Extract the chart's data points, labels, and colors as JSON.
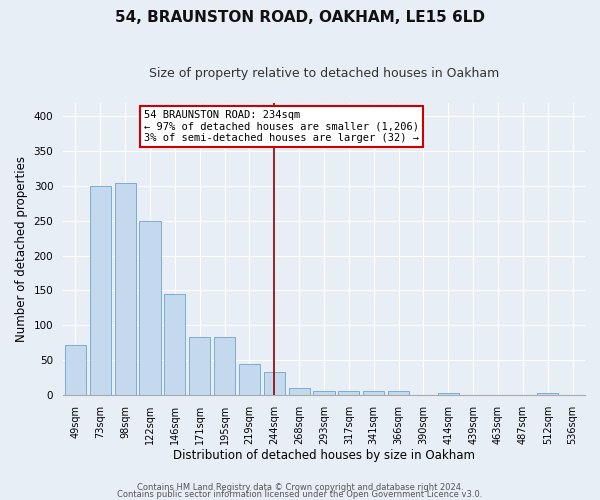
{
  "title": "54, BRAUNSTON ROAD, OAKHAM, LE15 6LD",
  "subtitle": "Size of property relative to detached houses in Oakham",
  "xlabel": "Distribution of detached houses by size in Oakham",
  "ylabel": "Number of detached properties",
  "bar_color": "#c5d9ee",
  "bar_edge_color": "#7aadd4",
  "background_color": "#e8eef5",
  "grid_color": "#ffffff",
  "tick_labels": [
    "49sqm",
    "73sqm",
    "98sqm",
    "122sqm",
    "146sqm",
    "171sqm",
    "195sqm",
    "219sqm",
    "244sqm",
    "268sqm",
    "293sqm",
    "317sqm",
    "341sqm",
    "366sqm",
    "390sqm",
    "414sqm",
    "439sqm",
    "463sqm",
    "487sqm",
    "512sqm",
    "536sqm"
  ],
  "bar_values": [
    72,
    300,
    305,
    250,
    145,
    83,
    83,
    45,
    33,
    10,
    6,
    6,
    6,
    6,
    0,
    3,
    0,
    0,
    0,
    3,
    0
  ],
  "ylim": [
    0,
    420
  ],
  "yticks": [
    0,
    50,
    100,
    150,
    200,
    250,
    300,
    350,
    400
  ],
  "property_line_index": 8,
  "property_line_color": "#8b0000",
  "annotation_title": "54 BRAUNSTON ROAD: 234sqm",
  "annotation_line1": "← 97% of detached houses are smaller (1,206)",
  "annotation_line2": "3% of semi-detached houses are larger (32) →",
  "annotation_box_color": "#cc0000",
  "footer_line1": "Contains HM Land Registry data © Crown copyright and database right 2024.",
  "footer_line2": "Contains public sector information licensed under the Open Government Licence v3.0.",
  "title_fontsize": 11,
  "subtitle_fontsize": 9,
  "label_fontsize": 8.5,
  "tick_fontsize": 7,
  "annotation_fontsize": 7.5,
  "footer_fontsize": 6
}
